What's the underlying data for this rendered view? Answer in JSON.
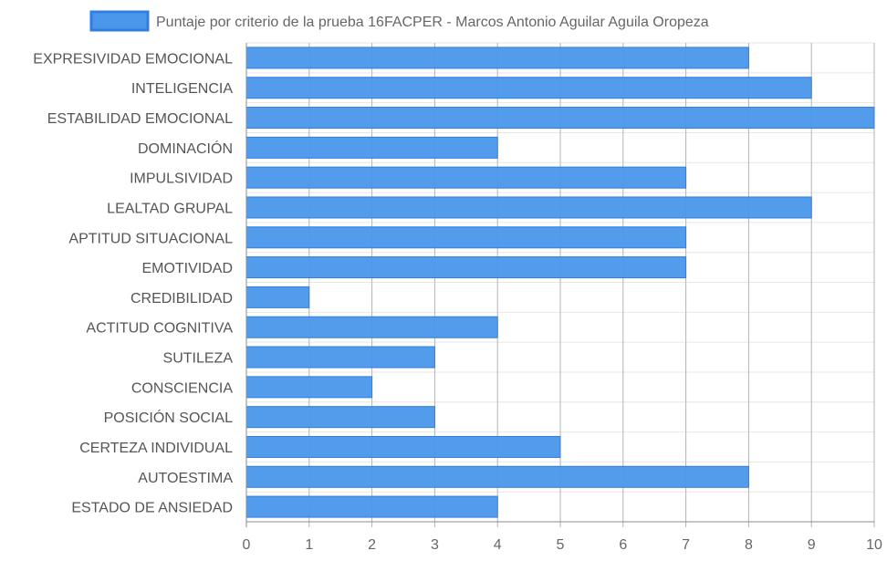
{
  "chart_data": {
    "type": "bar",
    "orientation": "horizontal",
    "categories": [
      "EXPRESIVIDAD EMOCIONAL",
      "INTELIGENCIA",
      "ESTABILIDAD EMOCIONAL",
      "DOMINACIÓN",
      "IMPULSIVIDAD",
      "LEALTAD GRUPAL",
      "APTITUD SITUACIONAL",
      "EMOTIVIDAD",
      "CREDIBILIDAD",
      "ACTITUD COGNITIVA",
      "SUTILEZA",
      "CONSCIENCIA",
      "POSICIÓN SOCIAL",
      "CERTEZA INDIVIDUAL",
      "AUTOESTIMA",
      "ESTADO DE ANSIEDAD"
    ],
    "series": [
      {
        "name": "Puntaje por criterio de la prueba 16FACPER - Marcos Antonio Aguilar Aguila Oropeza",
        "values": [
          8,
          9,
          10,
          4,
          7,
          9,
          7,
          7,
          1,
          4,
          3,
          2,
          3,
          5,
          8,
          4
        ],
        "color": "#4a97eb"
      }
    ],
    "xlim": [
      0,
      10
    ],
    "xticks": [
      0,
      1,
      2,
      3,
      4,
      5,
      6,
      7,
      8,
      9,
      10
    ],
    "grid": true,
    "legend_position": "top"
  },
  "colors": {
    "bar_fill": "#4a97eb",
    "bar_stroke": "#2f7ee0",
    "grid": "#e6e6e6",
    "vertical_grid": "#b3b3b3",
    "axis": "#8c8c8c"
  }
}
